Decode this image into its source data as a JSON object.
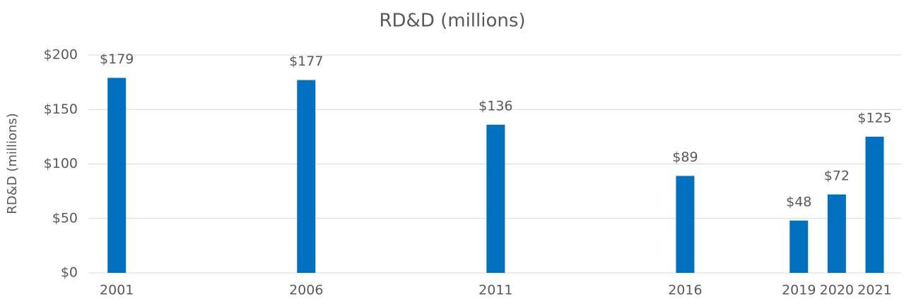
{
  "chart_data": {
    "type": "bar",
    "title": "RD&D (millions)",
    "y_label": "RD&D (millions)",
    "x": [
      2001,
      2006,
      2011,
      2016,
      2019,
      2020,
      2021
    ],
    "values": [
      179,
      177,
      136,
      89,
      48,
      72,
      125
    ],
    "value_labels": [
      "$179",
      "$177",
      "$136",
      "$89",
      "$48",
      "$72",
      "$125"
    ],
    "color": "#0070c0",
    "xlim": [
      2000.25,
      2021.7
    ],
    "xticks": [
      2001,
      2006,
      2011,
      2016,
      2019,
      2020,
      2021
    ],
    "ylim": [
      0,
      200
    ],
    "yticks": [
      {
        "value": 0,
        "label": "$0"
      },
      {
        "value": 50,
        "label": "$50"
      },
      {
        "value": 100,
        "label": "$100"
      },
      {
        "value": 150,
        "label": "$150"
      },
      {
        "value": 200,
        "label": "$200"
      }
    ],
    "grid": true
  }
}
